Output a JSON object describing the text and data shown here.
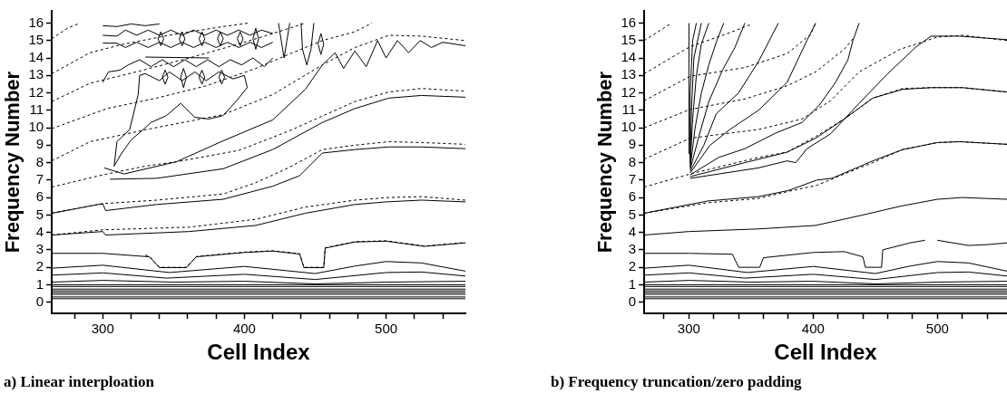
{
  "chart_data": [
    {
      "type": "line",
      "xlabel": "Cell Index",
      "ylabel": "Frequency Number",
      "annotations": [
        "a) Linear interploation"
      ],
      "xlim": [
        264,
        556
      ],
      "ylim": [
        -0.65,
        16.7
      ],
      "xticks": [
        {
          "value": 280,
          "label": null
        },
        300,
        {
          "value": 320,
          "label": null
        },
        {
          "value": 340,
          "label": null
        },
        {
          "value": 360,
          "label": null
        },
        {
          "value": 380,
          "label": null
        },
        400,
        {
          "value": 420,
          "label": null
        },
        {
          "value": 440,
          "label": null
        },
        {
          "value": 460,
          "label": null
        },
        {
          "value": 480,
          "label": null
        },
        500,
        {
          "value": 520,
          "label": null
        },
        {
          "value": 540,
          "label": null
        }
      ],
      "yticks": [
        0,
        1,
        2,
        3,
        4,
        5,
        6,
        7,
        8,
        9,
        10,
        11,
        12,
        13,
        14,
        15,
        16
      ],
      "grid": false,
      "legend": false,
      "marker": "none",
      "series": [
        {
          "color": "#000000",
          "x": [
            264,
            556
          ],
          "values": [
            0.2,
            0.2
          ]
        },
        {
          "color": "#000000",
          "x": [
            264,
            556
          ],
          "values": [
            0.3,
            0.3
          ]
        },
        {
          "color": "#000000",
          "x": [
            264,
            556
          ],
          "values": [
            0.45,
            0.45
          ]
        },
        {
          "color": "#000000",
          "x": [
            264,
            556
          ],
          "values": [
            0.55,
            0.55
          ]
        },
        {
          "color": "#000000",
          "x": [
            264,
            556
          ],
          "values": [
            0.65,
            0.65
          ]
        },
        {
          "color": "#000000",
          "x": [
            264,
            556
          ],
          "values": [
            0.75,
            0.75
          ]
        },
        {
          "color": "#000000",
          "x": [
            264,
            556
          ],
          "values": [
            0.9,
            0.9
          ]
        },
        {
          "color": "#000000",
          "x": [
            264,
            556
          ],
          "values": [
            1.0,
            1.0
          ]
        },
        {
          "color": "#000000",
          "x": [
            264,
            300,
            350,
            400,
            450,
            500,
            556
          ],
          "values": [
            1.15,
            1.25,
            1.15,
            1.2,
            1.05,
            1.15,
            1.2
          ]
        },
        {
          "color": "#000000",
          "x": [
            264,
            300,
            345,
            400,
            450,
            500,
            525,
            556
          ],
          "values": [
            1.55,
            1.68,
            1.38,
            1.6,
            1.3,
            1.7,
            1.73,
            1.5
          ]
        },
        {
          "color": "#000000",
          "x": [
            264,
            300,
            347,
            400,
            450,
            478,
            500,
            525,
            556
          ],
          "values": [
            1.95,
            2.12,
            1.7,
            2.05,
            1.64,
            2.07,
            2.33,
            2.25,
            1.78
          ]
        },
        {
          "color": "#000000",
          "x": [
            264,
            300,
            333,
            340,
            359,
            366,
            400,
            420,
            439,
            442,
            456,
            457,
            478,
            500,
            527,
            556
          ],
          "values": [
            2.8,
            2.8,
            2.6,
            1.98,
            1.98,
            2.6,
            2.85,
            2.93,
            2.76,
            1.98,
            1.98,
            3.1,
            3.45,
            3.5,
            3.2,
            3.4
          ]
        },
        {
          "color": "#000000",
          "line_style": "dashed",
          "x": [
            330,
            333,
            340,
            359,
            366,
            400,
            420,
            439,
            442,
            456,
            457,
            478,
            500,
            527,
            556
          ],
          "values": [
            2.7,
            2.62,
            2.0,
            2.0,
            2.62,
            2.87,
            2.95,
            2.78,
            2.0,
            2.0,
            3.12,
            3.47,
            3.52,
            3.22,
            3.42
          ]
        },
        {
          "color": "#000000",
          "x": [
            264,
            300,
            302,
            361,
            408,
            443,
            478,
            500,
            525,
            556
          ],
          "values": [
            3.85,
            4.05,
            3.85,
            4.05,
            4.4,
            5.1,
            5.6,
            5.75,
            5.85,
            5.75
          ]
        },
        {
          "color": "#000000",
          "line_style": "dashed",
          "x": [
            264,
            300,
            361,
            408,
            443,
            478,
            502,
            525,
            556
          ],
          "values": [
            3.85,
            4.15,
            4.3,
            4.75,
            5.45,
            5.85,
            6.0,
            6.05,
            5.85
          ]
        },
        {
          "color": "#000000",
          "x": [
            264,
            300,
            302,
            338,
            385,
            420,
            439,
            455,
            478,
            502,
            525,
            556
          ],
          "values": [
            5.1,
            5.65,
            5.25,
            5.6,
            5.9,
            6.65,
            7.25,
            8.55,
            8.75,
            8.9,
            8.9,
            8.8
          ]
        },
        {
          "color": "#000000",
          "line_style": "dashed",
          "x": [
            264,
            300,
            338,
            385,
            408,
            431,
            455,
            478,
            502,
            525,
            556
          ],
          "values": [
            5.1,
            5.65,
            5.85,
            6.2,
            6.85,
            7.7,
            8.75,
            9.0,
            9.2,
            9.15,
            9.05
          ]
        },
        {
          "color": "#000000",
          "x": [
            305,
            338,
            385,
            420,
            455,
            478,
            502,
            525,
            556
          ],
          "values": [
            7.05,
            7.1,
            7.65,
            8.75,
            10.3,
            11.1,
            11.7,
            11.85,
            11.75
          ]
        },
        {
          "color": "#000000",
          "line_style": "dashed",
          "x": [
            264,
            300,
            330,
            352,
            396,
            431,
            478,
            502,
            525,
            556
          ],
          "values": [
            6.6,
            7.3,
            7.8,
            8.05,
            8.7,
            9.8,
            11.5,
            12.05,
            12.25,
            12.1
          ]
        },
        {
          "color": "#000000",
          "line_style": "dashed",
          "x": [
            264,
            291,
            331,
            385,
            420,
            455,
            478,
            502,
            525,
            556
          ],
          "values": [
            8.1,
            9.2,
            9.9,
            10.75,
            11.9,
            13.6,
            14.6,
            15.3,
            15.25,
            15.0
          ]
        },
        {
          "color": "#000000",
          "line_style": "dashed",
          "x": [
            264,
            303,
            338,
            373,
            408,
            431,
            455,
            478,
            490
          ],
          "values": [
            9.95,
            11.1,
            11.7,
            12.4,
            13.4,
            14.2,
            15.0,
            15.5,
            16.0
          ]
        },
        {
          "color": "#000000",
          "line_style": "dashed",
          "x": [
            264,
            291,
            326,
            361,
            396,
            420,
            443
          ],
          "values": [
            11.5,
            12.55,
            13.25,
            14.0,
            14.8,
            15.4,
            16.0
          ]
        },
        {
          "color": "#000000",
          "line_style": "dashed",
          "x": [
            264,
            291,
            315,
            350,
            385,
            403
          ],
          "values": [
            13.1,
            14.3,
            14.8,
            15.35,
            15.8,
            16.0
          ]
        },
        {
          "color": "#000000",
          "line_style": "dashed",
          "x": [
            264,
            275,
            284
          ],
          "values": [
            15.1,
            15.7,
            16.0
          ]
        },
        {
          "color": "#000000",
          "x": [
            301,
            315,
            352,
            385,
            420,
            443,
            455,
            464,
            470,
            478,
            486,
            494,
            500,
            508,
            516,
            524,
            532,
            540,
            556
          ],
          "values": [
            7.7,
            7.35,
            8.05,
            9.25,
            10.45,
            12.2,
            13.6,
            14.3,
            13.4,
            14.4,
            13.5,
            15.0,
            14.0,
            15.0,
            14.3,
            15.0,
            14.6,
            14.9,
            14.7
          ]
        },
        {
          "color": "#000000",
          "x": [
            308,
            310,
            319,
            325,
            326,
            330,
            340,
            347,
            356,
            365,
            373,
            382,
            392,
            400,
            402
          ],
          "values": [
            7.8,
            9.2,
            9.9,
            11.9,
            13.0,
            13.1,
            12.7,
            13.2,
            12.7,
            13.2,
            12.7,
            13.2,
            12.8,
            13.0,
            12.3
          ]
        },
        {
          "color": "#000000",
          "x": [
            308,
            313,
            320,
            330,
            334,
            345,
            355,
            365,
            375,
            385,
            395,
            402
          ],
          "values": [
            7.8,
            8.5,
            9.3,
            10.0,
            10.3,
            10.7,
            11.4,
            10.6,
            10.5,
            10.7,
            11.6,
            12.3
          ]
        },
        {
          "color": "#000000",
          "x": [
            300,
            310,
            320,
            330,
            340
          ],
          "values": [
            15.85,
            15.8,
            15.95,
            15.85,
            15.95
          ]
        },
        {
          "color": "#000000",
          "x": [
            300,
            310,
            316,
            324,
            332,
            340,
            348,
            356,
            364,
            372,
            380,
            388,
            396,
            404,
            412,
            420
          ],
          "values": [
            15.3,
            15.25,
            15.6,
            15.3,
            15.6,
            15.3,
            15.6,
            15.3,
            15.6,
            15.3,
            15.6,
            15.3,
            15.6,
            15.3,
            15.6,
            15.4
          ]
        },
        {
          "color": "#000000",
          "x": [
            300,
            310,
            316,
            324,
            332,
            340,
            348,
            356,
            364,
            372,
            380,
            388,
            396,
            404,
            412,
            420
          ],
          "values": [
            14.85,
            14.85,
            14.6,
            14.9,
            14.6,
            14.9,
            14.6,
            14.9,
            14.6,
            14.9,
            14.6,
            14.9,
            14.6,
            14.9,
            14.6,
            14.9
          ]
        },
        {
          "color": "#000000",
          "x": [
            300,
            304,
            312,
            318,
            326,
            334,
            342,
            350,
            358,
            366,
            374,
            382,
            390,
            398,
            406,
            414,
            420
          ],
          "values": [
            12.6,
            13.2,
            13.3,
            13.6,
            13.9,
            13.5,
            13.9,
            13.5,
            13.9,
            13.5,
            13.9,
            13.5,
            13.9,
            13.6,
            14.0,
            13.5,
            14.0
          ]
        },
        {
          "color": "#000000",
          "x": [
            330,
            375
          ],
          "values": [
            14.05,
            14.0
          ]
        },
        {
          "color": "#000000",
          "x": [
            339,
            341,
            343
          ],
          "values": [
            15.1,
            15.5,
            15.1
          ]
        },
        {
          "color": "#000000",
          "x": [
            339,
            341,
            343
          ],
          "values": [
            15.1,
            14.7,
            15.1
          ]
        },
        {
          "color": "#000000",
          "x": [
            354,
            356,
            358
          ],
          "values": [
            15.1,
            15.5,
            15.1
          ]
        },
        {
          "color": "#000000",
          "x": [
            354,
            356,
            358
          ],
          "values": [
            15.1,
            14.7,
            15.1
          ]
        },
        {
          "color": "#000000",
          "x": [
            368,
            370,
            372
          ],
          "values": [
            15.1,
            15.5,
            15.1
          ]
        },
        {
          "color": "#000000",
          "x": [
            368,
            370,
            372
          ],
          "values": [
            15.1,
            14.7,
            15.1
          ]
        },
        {
          "color": "#000000",
          "x": [
            381,
            383,
            385
          ],
          "values": [
            15.1,
            15.5,
            15.1
          ]
        },
        {
          "color": "#000000",
          "x": [
            381,
            383,
            385
          ],
          "values": [
            15.1,
            14.7,
            15.1
          ]
        },
        {
          "color": "#000000",
          "x": [
            395,
            397,
            399
          ],
          "values": [
            15.1,
            15.5,
            15.1
          ]
        },
        {
          "color": "#000000",
          "x": [
            395,
            397,
            399
          ],
          "values": [
            15.1,
            14.7,
            15.1
          ]
        },
        {
          "color": "#000000",
          "x": [
            406,
            408,
            410
          ],
          "values": [
            15.1,
            15.7,
            15.1
          ]
        },
        {
          "color": "#000000",
          "x": [
            406,
            408,
            410
          ],
          "values": [
            15.1,
            14.5,
            15.1
          ]
        },
        {
          "color": "#000000",
          "x": [
            342,
            344,
            346
          ],
          "values": [
            12.9,
            13.3,
            12.9
          ]
        },
        {
          "color": "#000000",
          "x": [
            342,
            344,
            346
          ],
          "values": [
            12.9,
            12.5,
            12.9
          ]
        },
        {
          "color": "#000000",
          "x": [
            355,
            357,
            359
          ],
          "values": [
            12.9,
            13.4,
            12.9
          ]
        },
        {
          "color": "#000000",
          "x": [
            355,
            357,
            359
          ],
          "values": [
            12.9,
            12.3,
            12.9
          ]
        },
        {
          "color": "#000000",
          "x": [
            368,
            370,
            372
          ],
          "values": [
            12.9,
            13.3,
            12.9
          ]
        },
        {
          "color": "#000000",
          "x": [
            368,
            370,
            372
          ],
          "values": [
            12.9,
            12.5,
            12.9
          ]
        },
        {
          "color": "#000000",
          "x": [
            382,
            384,
            386
          ],
          "values": [
            12.9,
            13.3,
            12.9
          ]
        },
        {
          "color": "#000000",
          "x": [
            382,
            384,
            386
          ],
          "values": [
            12.9,
            12.5,
            12.9
          ]
        },
        {
          "color": "#000000",
          "x": [
            424,
            426,
            428,
            430,
            432
          ],
          "values": [
            16.0,
            15.0,
            14.0,
            15.0,
            16.0
          ]
        },
        {
          "color": "#000000",
          "x": [
            440,
            441,
            444,
            447,
            449
          ],
          "values": [
            16.0,
            14.5,
            13.6,
            14.5,
            16.0
          ]
        },
        {
          "color": "#000000",
          "x": [
            452,
            454,
            456
          ],
          "values": [
            14.8,
            15.4,
            14.8
          ]
        },
        {
          "color": "#000000",
          "x": [
            452,
            454,
            456
          ],
          "values": [
            14.8,
            14.2,
            14.8
          ]
        }
      ]
    },
    {
      "type": "line",
      "xlabel": "Cell Index",
      "ylabel": "Frequency Number",
      "annotations": [
        "b) Frequency truncation/zero padding"
      ],
      "xlim": [
        264,
        556
      ],
      "ylim": [
        -0.65,
        16.7
      ],
      "xticks": [
        {
          "value": 280,
          "label": null
        },
        300,
        {
          "value": 320,
          "label": null
        },
        {
          "value": 340,
          "label": null
        },
        {
          "value": 360,
          "label": null
        },
        {
          "value": 380,
          "label": null
        },
        400,
        {
          "value": 420,
          "label": null
        },
        {
          "value": 440,
          "label": null
        },
        {
          "value": 460,
          "label": null
        },
        {
          "value": 480,
          "label": null
        },
        500,
        {
          "value": 520,
          "label": null
        },
        {
          "value": 540,
          "label": null
        }
      ],
      "yticks": [
        0,
        1,
        2,
        3,
        4,
        5,
        6,
        7,
        8,
        9,
        10,
        11,
        12,
        13,
        14,
        15,
        16
      ],
      "grid": false,
      "legend": false,
      "marker": "none",
      "series": [
        {
          "color": "#000000",
          "x": [
            264,
            556
          ],
          "values": [
            0.2,
            0.2
          ]
        },
        {
          "color": "#000000",
          "x": [
            264,
            556
          ],
          "values": [
            0.3,
            0.3
          ]
        },
        {
          "color": "#000000",
          "x": [
            264,
            556
          ],
          "values": [
            0.45,
            0.45
          ]
        },
        {
          "color": "#000000",
          "x": [
            264,
            556
          ],
          "values": [
            0.55,
            0.55
          ]
        },
        {
          "color": "#000000",
          "x": [
            264,
            556
          ],
          "values": [
            0.65,
            0.65
          ]
        },
        {
          "color": "#000000",
          "x": [
            264,
            556
          ],
          "values": [
            0.75,
            0.75
          ]
        },
        {
          "color": "#000000",
          "x": [
            264,
            556
          ],
          "values": [
            0.9,
            0.9
          ]
        },
        {
          "color": "#000000",
          "x": [
            264,
            556
          ],
          "values": [
            1.0,
            1.0
          ]
        },
        {
          "color": "#000000",
          "x": [
            264,
            300,
            350,
            400,
            450,
            500,
            556
          ],
          "values": [
            1.15,
            1.25,
            1.15,
            1.2,
            1.05,
            1.15,
            1.2
          ]
        },
        {
          "color": "#000000",
          "x": [
            264,
            300,
            345,
            400,
            450,
            500,
            525,
            556
          ],
          "values": [
            1.55,
            1.68,
            1.38,
            1.6,
            1.3,
            1.7,
            1.73,
            1.5
          ]
        },
        {
          "color": "#000000",
          "x": [
            264,
            300,
            347,
            400,
            450,
            478,
            500,
            525,
            556
          ],
          "values": [
            1.95,
            2.12,
            1.7,
            2.05,
            1.64,
            2.07,
            2.33,
            2.25,
            1.78
          ]
        },
        {
          "color": "#000000",
          "x": [
            264,
            300,
            335,
            340,
            357,
            360,
            400,
            425,
            440,
            442,
            455,
            456,
            478,
            490
          ],
          "values": [
            2.8,
            2.8,
            2.75,
            2.0,
            2.0,
            2.55,
            2.85,
            2.9,
            2.6,
            2.0,
            2.0,
            3.0,
            3.4,
            3.55
          ]
        },
        {
          "color": "#000000",
          "x": [
            500,
            525,
            540,
            556
          ],
          "values": [
            3.55,
            3.25,
            3.3,
            3.4
          ]
        },
        {
          "color": "#000000",
          "x": [
            264,
            300,
            356,
            402,
            440,
            470,
            500,
            520,
            556
          ],
          "values": [
            3.85,
            4.05,
            4.2,
            4.4,
            5.0,
            5.5,
            5.9,
            6.0,
            5.9
          ]
        },
        {
          "color": "#000000",
          "x": [
            264,
            315,
            356,
            380,
            403,
            415,
            425,
            448,
            472,
            500,
            518,
            556
          ],
          "values": [
            5.1,
            5.8,
            6.05,
            6.4,
            7.0,
            7.1,
            7.4,
            8.1,
            8.75,
            9.15,
            9.2,
            9.05
          ]
        },
        {
          "color": "#000000",
          "line_style": "dashed",
          "x": [
            264,
            315,
            356,
            380,
            403,
            425,
            448,
            472,
            500,
            518,
            556
          ],
          "values": [
            5.1,
            5.7,
            5.95,
            6.35,
            6.7,
            7.35,
            8.0,
            8.75,
            9.15,
            9.2,
            9.05
          ]
        },
        {
          "color": "#000000",
          "x": [
            301,
            356,
            379,
            386,
            395,
            414,
            437,
            460,
            483,
            495,
            518,
            556
          ],
          "values": [
            7.1,
            7.7,
            8.1,
            8.0,
            8.8,
            9.65,
            11.4,
            13.1,
            14.65,
            15.25,
            15.25,
            15.05
          ]
        },
        {
          "color": "#000000",
          "line_style": "dashed",
          "x": [
            264,
            301,
            356,
            379,
            402,
            425,
            448,
            472,
            495,
            520,
            556
          ],
          "values": [
            6.6,
            7.35,
            8.3,
            8.6,
            9.5,
            10.5,
            11.7,
            12.25,
            12.3,
            12.3,
            12.05
          ]
        },
        {
          "color": "#000000",
          "x": [
            301,
            345,
            379,
            402,
            425,
            448,
            472,
            495,
            520,
            556
          ],
          "values": [
            7.2,
            8.0,
            8.6,
            9.4,
            10.5,
            11.7,
            12.2,
            12.3,
            12.3,
            12.05
          ]
        },
        {
          "color": "#000000",
          "line_style": "dashed",
          "x": [
            264,
            301,
            356,
            391,
            414,
            437,
            470,
            500,
            520,
            556
          ],
          "values": [
            8.2,
            9.4,
            9.9,
            10.5,
            11.55,
            13.2,
            14.5,
            15.2,
            15.3,
            15.0
          ]
        },
        {
          "color": "#000000",
          "line_style": "dashed",
          "x": [
            264,
            301,
            345,
            379,
            402,
            425,
            432
          ],
          "values": [
            10.0,
            11.05,
            11.65,
            12.4,
            13.2,
            14.5,
            15.1
          ]
        },
        {
          "color": "#000000",
          "line_style": "dashed",
          "x": [
            264,
            301,
            345,
            379,
            398,
            402
          ],
          "values": [
            11.55,
            12.95,
            13.45,
            14.25,
            15.35,
            16.0
          ]
        },
        {
          "color": "#000000",
          "line_style": "dashed",
          "x": [
            264,
            301,
            333,
            349
          ],
          "values": [
            13.1,
            14.65,
            15.45,
            15.9
          ]
        },
        {
          "color": "#000000",
          "line_style": "dashed",
          "x": [
            264,
            285
          ],
          "values": [
            15.0,
            15.95
          ]
        },
        {
          "color": "#000000",
          "x": [
            301,
            324,
            345,
            370,
            391,
            405,
            418,
            428,
            432,
            434,
            437
          ],
          "values": [
            7.3,
            8.3,
            8.8,
            9.7,
            10.3,
            11.3,
            12.6,
            13.9,
            15.0,
            15.4,
            16.0
          ]
        },
        {
          "color": "#000000",
          "x": [
            301,
            317,
            333,
            356,
            379,
            395,
            402
          ],
          "values": [
            7.4,
            9.0,
            9.9,
            11.0,
            12.6,
            15.0,
            16.0
          ]
        },
        {
          "color": "#000000",
          "x": [
            301,
            312,
            322,
            340,
            356,
            372
          ],
          "values": [
            7.5,
            9.0,
            10.8,
            12.0,
            13.8,
            16.0
          ]
        },
        {
          "color": "#000000",
          "x": [
            301,
            308,
            316,
            327,
            337,
            345
          ],
          "values": [
            7.6,
            9.5,
            11.5,
            13.3,
            14.6,
            16.0
          ]
        },
        {
          "color": "#000000",
          "x": [
            301,
            305,
            310,
            316,
            322,
            328
          ],
          "values": [
            7.7,
            10.0,
            12.0,
            13.6,
            14.9,
            16.0
          ]
        },
        {
          "color": "#000000",
          "x": [
            301,
            303,
            306,
            310,
            316
          ],
          "values": [
            7.8,
            10.5,
            13.0,
            14.8,
            16.0
          ]
        },
        {
          "color": "#000000",
          "x": [
            301,
            302,
            304,
            310
          ],
          "values": [
            8.0,
            11.0,
            14.0,
            16.0
          ]
        },
        {
          "color": "#000000",
          "x": [
            300.5,
            301,
            303,
            306
          ],
          "values": [
            8.0,
            12.0,
            15.0,
            16.0
          ]
        },
        {
          "color": "#000000",
          "x": [
            300,
            300
          ],
          "values": [
            8.5,
            16.0
          ]
        }
      ]
    }
  ]
}
